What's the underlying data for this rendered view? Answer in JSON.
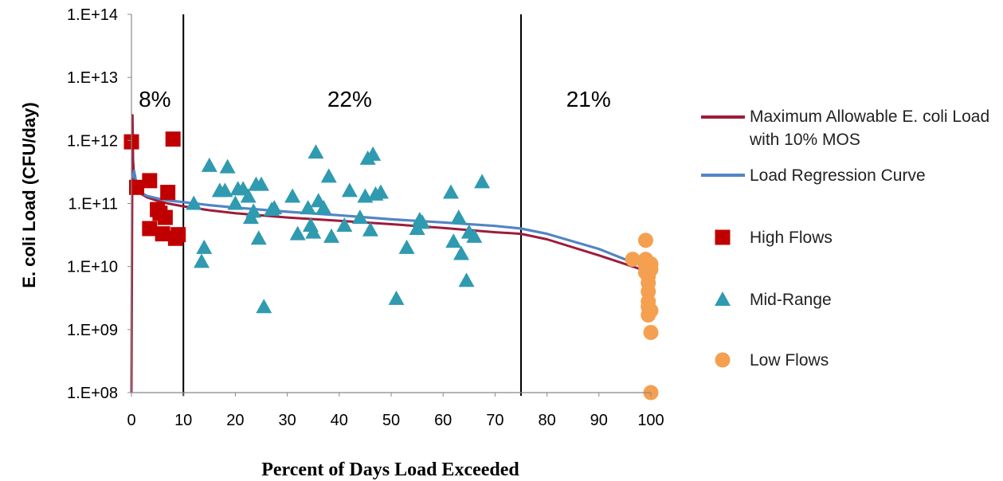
{
  "chart_data": {
    "type": "scatter",
    "xlabel": "Percent of Days Load Exceeded",
    "ylabel": "E. coli Load (CFU/day)",
    "xlim": [
      0,
      100
    ],
    "ylim": [
      100000000,
      100000000000000
    ],
    "y_scale": "log",
    "x_ticks": [
      "0",
      "10",
      "20",
      "30",
      "40",
      "50",
      "60",
      "70",
      "80",
      "90",
      "100"
    ],
    "y_ticks": [
      "1.E+08",
      "1.E+09",
      "1.E+10",
      "1.E+11",
      "1.E+12",
      "1.E+13",
      "1.E+14"
    ],
    "grid": false,
    "legend_position": "right",
    "zone_boundaries": [
      10,
      75
    ],
    "zone_labels": [
      {
        "x": 4.5,
        "label": "8%"
      },
      {
        "x": 42,
        "label": "22%"
      },
      {
        "x": 88,
        "label": "21%"
      }
    ],
    "series": [
      {
        "name": "Maximum Allowable E. coli Load with 10% MOS",
        "kind": "line",
        "color": "#9c1c3c",
        "x": [
          0,
          0.2,
          0.3,
          0.5,
          1,
          2,
          3,
          5,
          7,
          10,
          15,
          20,
          30,
          40,
          50,
          60,
          70,
          75,
          80,
          90,
          95,
          100
        ],
        "y": [
          100000000,
          2500000000000,
          500000000000,
          270000000000,
          180000000000,
          140000000000,
          125000000000,
          110000000000,
          100000000000,
          90000000000,
          78000000000,
          70000000000,
          60000000000,
          53000000000,
          47000000000,
          41000000000,
          35000000000,
          33000000000,
          27000000000,
          15000000000,
          11000000000,
          8000000000
        ]
      },
      {
        "name": "Load Regression Curve",
        "kind": "line",
        "color": "#5185c5",
        "x": [
          0.2,
          0.5,
          1,
          2,
          3,
          5,
          7,
          10,
          15,
          20,
          30,
          40,
          50,
          60,
          70,
          75,
          80,
          90,
          95,
          100
        ],
        "y": [
          250000000000,
          330000000000,
          200000000000,
          145000000000,
          132000000000,
          120000000000,
          112000000000,
          105000000000,
          94000000000,
          86000000000,
          74000000000,
          65000000000,
          56000000000,
          50000000000,
          44000000000,
          40000000000,
          33000000000,
          19000000000,
          13000000000,
          9500000000
        ]
      },
      {
        "name": "High Flows",
        "kind": "scatter",
        "marker": "square",
        "color": "#c00000",
        "x": [
          0,
          1,
          3.5,
          3.5,
          5,
          5.5,
          6,
          6.5,
          7,
          8,
          8.5,
          9
        ],
        "y": [
          950000000000,
          180000000000,
          230000000000,
          40000000000,
          80000000000,
          70000000000,
          33000000000,
          60000000000,
          150000000000,
          1050000000000,
          28000000000,
          32000000000
        ]
      },
      {
        "name": "Mid-Range",
        "kind": "scatter",
        "marker": "triangle",
        "color": "#2f9ab0",
        "x": [
          12,
          13.5,
          14,
          15,
          17,
          18,
          18.5,
          20,
          20.5,
          21.5,
          22.5,
          23,
          23.5,
          24,
          24.5,
          25,
          25.5,
          27,
          27.5,
          31,
          32,
          34,
          34.5,
          35,
          35.5,
          36,
          37,
          38,
          38.5,
          41,
          42,
          44,
          45,
          45.5,
          46,
          46.5,
          47,
          48,
          51,
          53,
          55,
          55.5,
          56,
          61.5,
          62,
          63,
          63.5,
          64.5,
          65,
          66,
          67.5
        ],
        "y": [
          100000000000,
          12000000000,
          20000000000,
          400000000000,
          160000000000,
          160000000000,
          380000000000,
          100000000000,
          170000000000,
          170000000000,
          130000000000,
          60000000000,
          75000000000,
          200000000000,
          28000000000,
          200000000000,
          2300000000,
          80000000000,
          85000000000,
          130000000000,
          33000000000,
          85000000000,
          45000000000,
          35000000000,
          650000000000,
          110000000000,
          85000000000,
          270000000000,
          30000000000,
          45000000000,
          160000000000,
          60000000000,
          130000000000,
          520000000000,
          38000000000,
          600000000000,
          140000000000,
          150000000000,
          3100000000,
          20000000000,
          40000000000,
          55000000000,
          50000000000,
          150000000000,
          25000000000,
          60000000000,
          16000000000,
          6000000000,
          35000000000,
          30000000000,
          220000000000
        ]
      },
      {
        "name": "Low Flows",
        "kind": "scatter",
        "marker": "circle",
        "color": "#f4a050",
        "x": [
          96.5,
          99,
          99,
          99,
          99,
          99.5,
          99.5,
          99.5,
          99.5,
          99.5,
          99.5,
          100,
          100,
          100,
          100,
          100
        ],
        "y": [
          13000000000,
          26000000000,
          13000000000,
          10000000000,
          8000000000,
          7000000000,
          5500000000,
          4000000000,
          2800000000,
          2300000000,
          1700000000,
          11000000000,
          9000000000,
          2000000000,
          900000000,
          100000000
        ]
      }
    ]
  }
}
